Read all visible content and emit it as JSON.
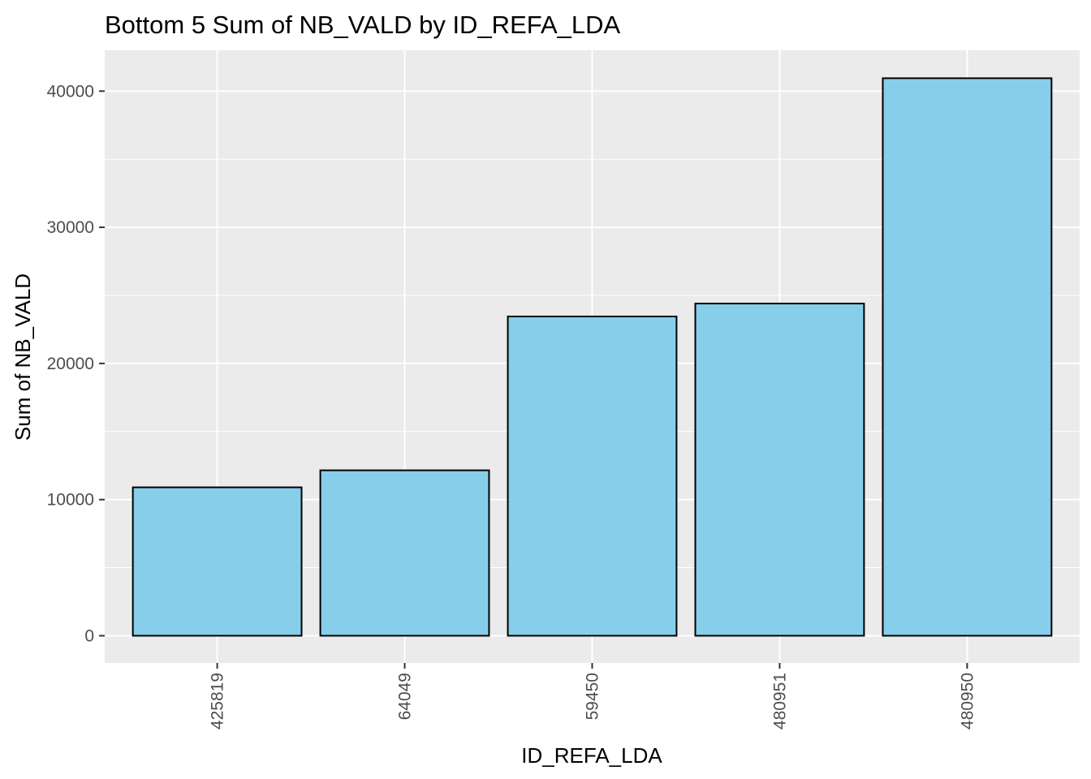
{
  "chart_data": {
    "type": "bar",
    "title": "Bottom 5 Sum of NB_VALD by ID_REFA_LDA",
    "xlabel": "ID_REFA_LDA",
    "ylabel": "Sum of NB_VALD",
    "categories": [
      "425819",
      "64049",
      "59450",
      "480951",
      "480950"
    ],
    "values": [
      10900,
      12150,
      23450,
      24400,
      40950
    ],
    "ylim": [
      -2000,
      43000
    ],
    "yticks": [
      0,
      10000,
      20000,
      30000,
      40000
    ],
    "ytick_labels": [
      "0",
      "10000",
      "20000",
      "30000",
      "40000"
    ],
    "grid": true,
    "legend": "none",
    "colors": {
      "panel_background": "#EBEBEB",
      "grid": "#FFFFFF",
      "bar_fill": "#87CEEB",
      "bar_outline": "#000000",
      "tick_text": "#4D4D4D",
      "tick_mark": "#333333"
    }
  }
}
